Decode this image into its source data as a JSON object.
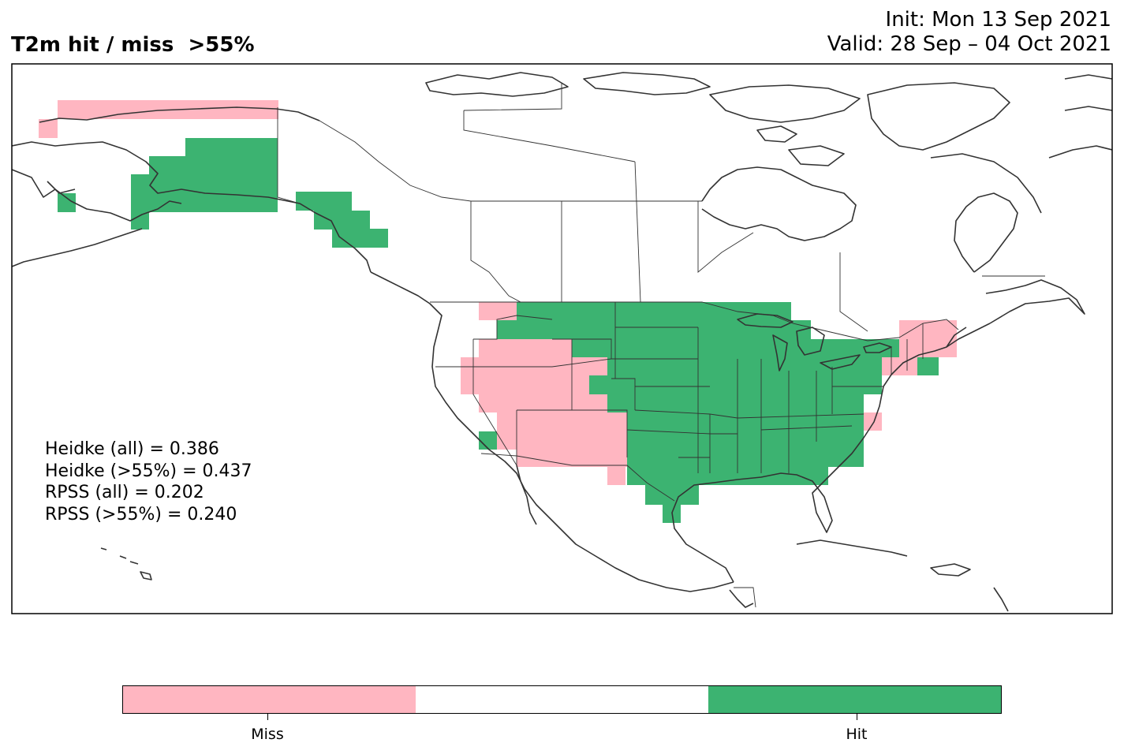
{
  "title": "T2m hit / miss  >55%",
  "init": "Init: Mon 13 Sep 2021",
  "valid": "Valid: 28 Sep – 04 Oct 2021",
  "scores": [
    "Heidke (all) = 0.386",
    "Heidke (>55%) = 0.437",
    "RPSS (all) = 0.202",
    "RPSS (>55%) = 0.240"
  ],
  "colorbar": {
    "categories": [
      "Miss",
      "",
      "Hit"
    ],
    "colors": [
      "#ffb6c1",
      "#ffffff",
      "#3cb371"
    ]
  },
  "colors": {
    "hit": "#3cb371",
    "miss": "#ffb6c1",
    "border": "#333333"
  },
  "map_regions": {
    "miss": [
      "Western Alaska coast",
      "Pacific Northwest interior",
      "Great Basin",
      "Southwest",
      "Northern New England",
      "Mid-Atlantic coast"
    ],
    "hit": [
      "Southern Alaska",
      "Alaska panhandle",
      "Northern Plains",
      "Central US",
      "Southeast",
      "Texas",
      "Great Lakes",
      "New York"
    ]
  }
}
